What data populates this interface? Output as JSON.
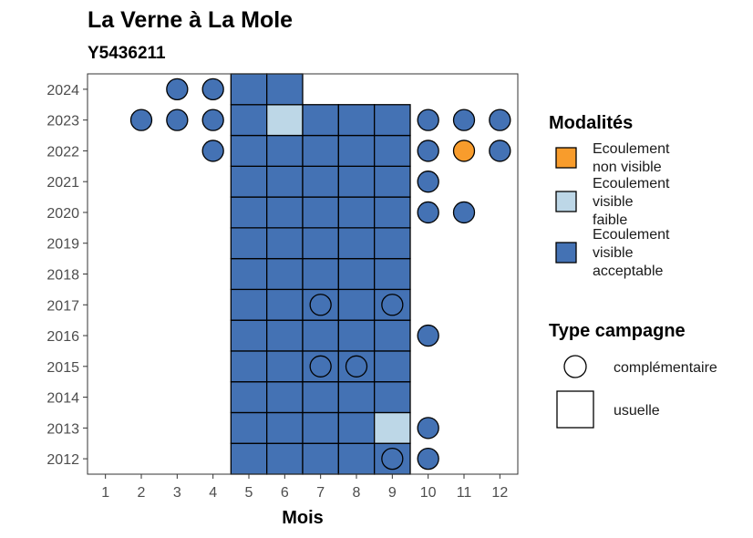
{
  "chart_data": {
    "type": "heatmap",
    "title": "La Verne à La Mole",
    "subtitle": "Y5436211",
    "xlabel": "Mois",
    "ylabel": "",
    "x_ticks": [
      1,
      2,
      3,
      4,
      5,
      6,
      7,
      8,
      9,
      10,
      11,
      12
    ],
    "y_ticks": [
      2012,
      2013,
      2014,
      2015,
      2016,
      2017,
      2018,
      2019,
      2020,
      2021,
      2022,
      2023,
      2024
    ],
    "xlim": [
      0.5,
      12.5
    ],
    "ylim": [
      2011.5,
      2024.5
    ],
    "grid": false,
    "legends": {
      "modalites": {
        "title": "Modalités",
        "position": "right",
        "items": [
          {
            "key": "non_visible",
            "lines": [
              "Ecoulement",
              "non visible"
            ],
            "color": "#F89C2C"
          },
          {
            "key": "faible",
            "lines": [
              "Ecoulement",
              "visible",
              "faible"
            ],
            "color": "#BDD7E7"
          },
          {
            "key": "acceptable",
            "lines": [
              "Ecoulement",
              "visible",
              "acceptable"
            ],
            "color": "#4472B4"
          }
        ]
      },
      "type_campagne": {
        "title": "Type campagne",
        "position": "right",
        "items": [
          {
            "key": "complementaire",
            "label": "complémentaire",
            "shape": "circle"
          },
          {
            "key": "usuelle",
            "label": "usuelle",
            "shape": "square"
          }
        ]
      }
    },
    "points": [
      {
        "month": 5,
        "year": 2012,
        "type": "usuelle",
        "mod": "acceptable"
      },
      {
        "month": 6,
        "year": 2012,
        "type": "usuelle",
        "mod": "acceptable"
      },
      {
        "month": 7,
        "year": 2012,
        "type": "usuelle",
        "mod": "acceptable"
      },
      {
        "month": 8,
        "year": 2012,
        "type": "usuelle",
        "mod": "acceptable"
      },
      {
        "month": 9,
        "year": 2012,
        "type": "usuelle",
        "mod": "acceptable"
      },
      {
        "month": 9,
        "year": 2012,
        "type": "complementaire",
        "mod": "acceptable"
      },
      {
        "month": 10,
        "year": 2012,
        "type": "complementaire",
        "mod": "acceptable"
      },
      {
        "month": 5,
        "year": 2013,
        "type": "usuelle",
        "mod": "acceptable"
      },
      {
        "month": 6,
        "year": 2013,
        "type": "usuelle",
        "mod": "acceptable"
      },
      {
        "month": 7,
        "year": 2013,
        "type": "usuelle",
        "mod": "acceptable"
      },
      {
        "month": 8,
        "year": 2013,
        "type": "usuelle",
        "mod": "acceptable"
      },
      {
        "month": 9,
        "year": 2013,
        "type": "usuelle",
        "mod": "faible"
      },
      {
        "month": 10,
        "year": 2013,
        "type": "complementaire",
        "mod": "acceptable"
      },
      {
        "month": 5,
        "year": 2014,
        "type": "usuelle",
        "mod": "acceptable"
      },
      {
        "month": 6,
        "year": 2014,
        "type": "usuelle",
        "mod": "acceptable"
      },
      {
        "month": 7,
        "year": 2014,
        "type": "usuelle",
        "mod": "acceptable"
      },
      {
        "month": 8,
        "year": 2014,
        "type": "usuelle",
        "mod": "acceptable"
      },
      {
        "month": 9,
        "year": 2014,
        "type": "usuelle",
        "mod": "acceptable"
      },
      {
        "month": 5,
        "year": 2015,
        "type": "usuelle",
        "mod": "acceptable"
      },
      {
        "month": 6,
        "year": 2015,
        "type": "usuelle",
        "mod": "acceptable"
      },
      {
        "month": 7,
        "year": 2015,
        "type": "usuelle",
        "mod": "acceptable"
      },
      {
        "month": 7,
        "year": 2015,
        "type": "complementaire",
        "mod": "acceptable"
      },
      {
        "month": 8,
        "year": 2015,
        "type": "usuelle",
        "mod": "acceptable"
      },
      {
        "month": 8,
        "year": 2015,
        "type": "complementaire",
        "mod": "acceptable"
      },
      {
        "month": 9,
        "year": 2015,
        "type": "usuelle",
        "mod": "acceptable"
      },
      {
        "month": 5,
        "year": 2016,
        "type": "usuelle",
        "mod": "acceptable"
      },
      {
        "month": 6,
        "year": 2016,
        "type": "usuelle",
        "mod": "acceptable"
      },
      {
        "month": 7,
        "year": 2016,
        "type": "usuelle",
        "mod": "acceptable"
      },
      {
        "month": 8,
        "year": 2016,
        "type": "usuelle",
        "mod": "acceptable"
      },
      {
        "month": 9,
        "year": 2016,
        "type": "usuelle",
        "mod": "acceptable"
      },
      {
        "month": 10,
        "year": 2016,
        "type": "complementaire",
        "mod": "acceptable"
      },
      {
        "month": 5,
        "year": 2017,
        "type": "usuelle",
        "mod": "acceptable"
      },
      {
        "month": 6,
        "year": 2017,
        "type": "usuelle",
        "mod": "acceptable"
      },
      {
        "month": 7,
        "year": 2017,
        "type": "usuelle",
        "mod": "acceptable"
      },
      {
        "month": 7,
        "year": 2017,
        "type": "complementaire",
        "mod": "acceptable"
      },
      {
        "month": 8,
        "year": 2017,
        "type": "usuelle",
        "mod": "acceptable"
      },
      {
        "month": 9,
        "year": 2017,
        "type": "usuelle",
        "mod": "acceptable"
      },
      {
        "month": 9,
        "year": 2017,
        "type": "complementaire",
        "mod": "acceptable"
      },
      {
        "month": 5,
        "year": 2018,
        "type": "usuelle",
        "mod": "acceptable"
      },
      {
        "month": 6,
        "year": 2018,
        "type": "usuelle",
        "mod": "acceptable"
      },
      {
        "month": 7,
        "year": 2018,
        "type": "usuelle",
        "mod": "acceptable"
      },
      {
        "month": 8,
        "year": 2018,
        "type": "usuelle",
        "mod": "acceptable"
      },
      {
        "month": 9,
        "year": 2018,
        "type": "usuelle",
        "mod": "acceptable"
      },
      {
        "month": 5,
        "year": 2019,
        "type": "usuelle",
        "mod": "acceptable"
      },
      {
        "month": 6,
        "year": 2019,
        "type": "usuelle",
        "mod": "acceptable"
      },
      {
        "month": 7,
        "year": 2019,
        "type": "usuelle",
        "mod": "acceptable"
      },
      {
        "month": 8,
        "year": 2019,
        "type": "usuelle",
        "mod": "acceptable"
      },
      {
        "month": 9,
        "year": 2019,
        "type": "usuelle",
        "mod": "acceptable"
      },
      {
        "month": 5,
        "year": 2020,
        "type": "usuelle",
        "mod": "acceptable"
      },
      {
        "month": 6,
        "year": 2020,
        "type": "usuelle",
        "mod": "acceptable"
      },
      {
        "month": 7,
        "year": 2020,
        "type": "usuelle",
        "mod": "acceptable"
      },
      {
        "month": 8,
        "year": 2020,
        "type": "usuelle",
        "mod": "acceptable"
      },
      {
        "month": 9,
        "year": 2020,
        "type": "usuelle",
        "mod": "acceptable"
      },
      {
        "month": 10,
        "year": 2020,
        "type": "complementaire",
        "mod": "acceptable"
      },
      {
        "month": 11,
        "year": 2020,
        "type": "complementaire",
        "mod": "acceptable"
      },
      {
        "month": 5,
        "year": 2021,
        "type": "usuelle",
        "mod": "acceptable"
      },
      {
        "month": 6,
        "year": 2021,
        "type": "usuelle",
        "mod": "acceptable"
      },
      {
        "month": 7,
        "year": 2021,
        "type": "usuelle",
        "mod": "acceptable"
      },
      {
        "month": 8,
        "year": 2021,
        "type": "usuelle",
        "mod": "acceptable"
      },
      {
        "month": 9,
        "year": 2021,
        "type": "usuelle",
        "mod": "acceptable"
      },
      {
        "month": 10,
        "year": 2021,
        "type": "complementaire",
        "mod": "acceptable"
      },
      {
        "month": 4,
        "year": 2022,
        "type": "complementaire",
        "mod": "acceptable"
      },
      {
        "month": 5,
        "year": 2022,
        "type": "usuelle",
        "mod": "acceptable"
      },
      {
        "month": 6,
        "year": 2022,
        "type": "usuelle",
        "mod": "acceptable"
      },
      {
        "month": 7,
        "year": 2022,
        "type": "usuelle",
        "mod": "acceptable"
      },
      {
        "month": 8,
        "year": 2022,
        "type": "usuelle",
        "mod": "acceptable"
      },
      {
        "month": 9,
        "year": 2022,
        "type": "usuelle",
        "mod": "acceptable"
      },
      {
        "month": 10,
        "year": 2022,
        "type": "complementaire",
        "mod": "acceptable"
      },
      {
        "month": 11,
        "year": 2022,
        "type": "complementaire",
        "mod": "non_visible"
      },
      {
        "month": 12,
        "year": 2022,
        "type": "complementaire",
        "mod": "acceptable"
      },
      {
        "month": 2,
        "year": 2023,
        "type": "complementaire",
        "mod": "acceptable"
      },
      {
        "month": 3,
        "year": 2023,
        "type": "complementaire",
        "mod": "acceptable"
      },
      {
        "month": 4,
        "year": 2023,
        "type": "complementaire",
        "mod": "acceptable"
      },
      {
        "month": 5,
        "year": 2023,
        "type": "usuelle",
        "mod": "acceptable"
      },
      {
        "month": 6,
        "year": 2023,
        "type": "usuelle",
        "mod": "faible"
      },
      {
        "month": 7,
        "year": 2023,
        "type": "usuelle",
        "mod": "acceptable"
      },
      {
        "month": 8,
        "year": 2023,
        "type": "usuelle",
        "mod": "acceptable"
      },
      {
        "month": 9,
        "year": 2023,
        "type": "usuelle",
        "mod": "acceptable"
      },
      {
        "month": 10,
        "year": 2023,
        "type": "complementaire",
        "mod": "acceptable"
      },
      {
        "month": 11,
        "year": 2023,
        "type": "complementaire",
        "mod": "acceptable"
      },
      {
        "month": 12,
        "year": 2023,
        "type": "complementaire",
        "mod": "acceptable"
      },
      {
        "month": 3,
        "year": 2024,
        "type": "complementaire",
        "mod": "acceptable"
      },
      {
        "month": 4,
        "year": 2024,
        "type": "complementaire",
        "mod": "acceptable"
      },
      {
        "month": 5,
        "year": 2024,
        "type": "usuelle",
        "mod": "acceptable"
      },
      {
        "month": 6,
        "year": 2024,
        "type": "usuelle",
        "mod": "acceptable"
      }
    ]
  }
}
